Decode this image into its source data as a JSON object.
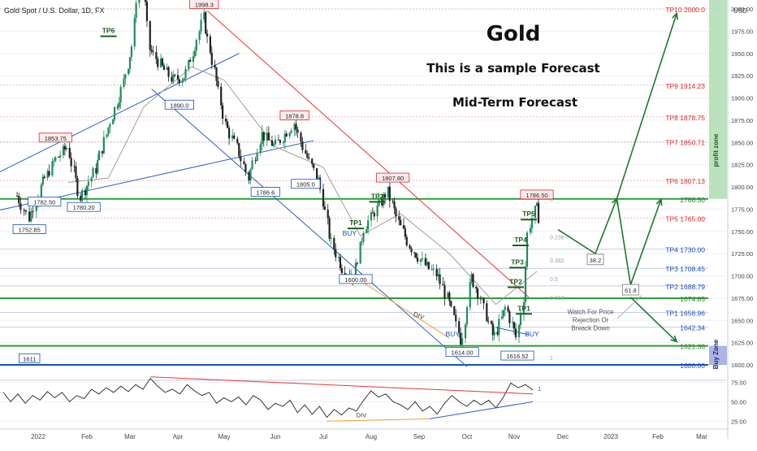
{
  "header": {
    "symbol_title": "Gold Spot / U.S. Dollar, 1D, FX",
    "currency": "USD"
  },
  "headline": {
    "title": "Gold",
    "subtitle": "This is a sample Forecast",
    "subtitle2": "Mid-Term Forecast"
  },
  "labels": {
    "profit_zone": "profit zone",
    "buy_zone": "Buy Zone",
    "watch_note": [
      "Watch For Price",
      "Rejection Or",
      "Breack Down"
    ],
    "div": "DIV"
  },
  "chart_data": [
    {
      "type": "line",
      "title": "Gold Spot / U.S. Dollar, 1D, FX",
      "y_axis": {
        "unit": "USD",
        "ticks": [
          1600,
          1625,
          1650,
          1675,
          1700,
          1725,
          1750,
          1775,
          1800,
          1825,
          1850,
          1875,
          1900,
          1925,
          1950,
          1975,
          2000
        ],
        "ylim": [
          1594,
          2012
        ]
      },
      "x_axis": {
        "ticks": [
          "2022",
          "Feb",
          "Mar",
          "Apr",
          "May",
          "Jun",
          "Jul",
          "Aug",
          "Sep",
          "Oct",
          "Nov",
          "Dec",
          "2023",
          "Feb",
          "Mar"
        ]
      },
      "price_path": [
        [
          "2021-12-20",
          1790
        ],
        [
          "2021-12-27",
          1765
        ],
        [
          "2022-01-03",
          1800
        ],
        [
          "2022-01-12",
          1830
        ],
        [
          "2022-01-20",
          1845
        ],
        [
          "2022-01-28",
          1788
        ],
        [
          "2022-02-07",
          1820
        ],
        [
          "2022-02-15",
          1865
        ],
        [
          "2022-02-24",
          1910
        ],
        [
          "2022-03-03",
          1960
        ],
        [
          "2022-03-08",
          2060
        ],
        [
          "2022-03-14",
          1955
        ],
        [
          "2022-03-22",
          1935
        ],
        [
          "2022-03-29",
          1920
        ],
        [
          "2022-04-06",
          1925
        ],
        [
          "2022-04-18",
          1990
        ],
        [
          "2022-04-25",
          1930
        ],
        [
          "2022-05-02",
          1870
        ],
        [
          "2022-05-10",
          1840
        ],
        [
          "2022-05-16",
          1810
        ],
        [
          "2022-05-24",
          1860
        ],
        [
          "2022-06-01",
          1845
        ],
        [
          "2022-06-13",
          1872
        ],
        [
          "2022-06-20",
          1838
        ],
        [
          "2022-06-29",
          1805
        ],
        [
          "2022-07-06",
          1740
        ],
        [
          "2022-07-14",
          1708
        ],
        [
          "2022-07-21",
          1700
        ],
        [
          "2022-07-28",
          1755
        ],
        [
          "2022-08-05",
          1775
        ],
        [
          "2022-08-12",
          1795
        ],
        [
          "2022-08-19",
          1760
        ],
        [
          "2022-08-26",
          1735
        ],
        [
          "2022-09-05",
          1712
        ],
        [
          "2022-09-13",
          1700
        ],
        [
          "2022-09-20",
          1670
        ],
        [
          "2022-09-28",
          1625
        ],
        [
          "2022-10-04",
          1700
        ],
        [
          "2022-10-11",
          1672
        ],
        [
          "2022-10-19",
          1630
        ],
        [
          "2022-10-27",
          1665
        ],
        [
          "2022-11-03",
          1630
        ],
        [
          "2022-11-07",
          1676
        ],
        [
          "2022-11-10",
          1752
        ],
        [
          "2022-11-15",
          1778
        ],
        [
          "2022-11-18",
          1758
        ]
      ],
      "sma_path": [
        [
          "2022-01-20",
          1805
        ],
        [
          "2022-02-15",
          1810
        ],
        [
          "2022-03-10",
          1890
        ],
        [
          "2022-04-10",
          1935
        ],
        [
          "2022-05-01",
          1920
        ],
        [
          "2022-06-01",
          1845
        ],
        [
          "2022-07-01",
          1822
        ],
        [
          "2022-07-25",
          1745
        ],
        [
          "2022-08-20",
          1770
        ],
        [
          "2022-09-20",
          1725
        ],
        [
          "2022-10-20",
          1668
        ],
        [
          "2022-11-15",
          1705
        ]
      ],
      "levels": [
        {
          "label": "TP10 2000.0",
          "value": 2000.0,
          "color": "#d32f2f"
        },
        {
          "label": "TP9 1914.23",
          "value": 1914.23,
          "color": "#d32f2f"
        },
        {
          "label": "TP8 1878.75",
          "value": 1878.75,
          "color": "#d32f2f"
        },
        {
          "label": "TP7 1850.71",
          "value": 1850.71,
          "color": "#d32f2f"
        },
        {
          "label": "TP6 1807.13",
          "value": 1807.13,
          "color": "#d32f2f"
        },
        {
          "label": "1786.50",
          "value": 1786.5,
          "color": "#2e7d32"
        },
        {
          "label": "TP5 1765.00",
          "value": 1765.0,
          "color": "#d32f2f"
        },
        {
          "label": "TP4 1730.00",
          "value": 1730.0,
          "color": "#1a4fbf"
        },
        {
          "label": "TP3 1708.45",
          "value": 1708.45,
          "color": "#1a4fbf"
        },
        {
          "label": "TP2 1688.79",
          "value": 1688.79,
          "color": "#1a4fbf"
        },
        {
          "label": "1674.85",
          "value": 1674.85,
          "color": "#2e7d32"
        },
        {
          "label": "TP1 1658.96",
          "value": 1658.96,
          "color": "#1a4fbf"
        },
        {
          "label": "1642.34",
          "value": 1642.34,
          "color": "#1a4fbf"
        },
        {
          "label": "1621.36",
          "value": 1621.36,
          "color": "#2e7d32"
        },
        {
          "label": "1600.00",
          "value": 1600.0,
          "color": "#1a4fbf"
        }
      ],
      "fib_labels": [
        {
          "label": "0",
          "value": 1786.5
        },
        {
          "label": "0.236",
          "value": 1744
        },
        {
          "label": "0.382",
          "value": 1718
        },
        {
          "label": "0.5",
          "value": 1697
        },
        {
          "label": "0.618",
          "value": 1676
        },
        {
          "label": "1",
          "value": 1608
        }
      ],
      "price_tags": [
        {
          "label": "1998.3",
          "date": "2022-04-18",
          "value": 2005,
          "color": "#d32f2f"
        },
        {
          "label": "1878.8",
          "date": "2022-06-13",
          "value": 1880,
          "color": "#d32f2f"
        },
        {
          "label": "1853.75",
          "date": "2022-01-12",
          "value": 1855,
          "color": "#d32f2f"
        },
        {
          "label": "1807.80",
          "date": "2022-08-15",
          "value": 1810,
          "color": "#d32f2f"
        },
        {
          "label": "1786.50",
          "date": "2022-11-15",
          "value": 1791,
          "color": "#d32f2f"
        },
        {
          "label": "1890.0",
          "date": "2022-04-02",
          "value": 1892,
          "color": "#1a4fbf"
        },
        {
          "label": "1805.0",
          "date": "2022-06-20",
          "value": 1803,
          "color": "#1a4fbf"
        },
        {
          "label": "1786.6",
          "date": "2022-05-26",
          "value": 1794,
          "color": "#1a4fbf"
        },
        {
          "label": "1782.50",
          "date": "2022-01-05",
          "value": 1783,
          "color": "#1a4fbf"
        },
        {
          "label": "1780.20",
          "date": "2022-01-30",
          "value": 1777,
          "color": "#1a4fbf"
        },
        {
          "label": "1752.85",
          "date": "2021-12-27",
          "value": 1752,
          "color": "#1a4fbf"
        },
        {
          "label": "1600.00",
          "date": "2022-07-22",
          "value": 1696,
          "color": "#1a4fbf"
        },
        {
          "label": "1614.00",
          "date": "2022-09-28",
          "value": 1614,
          "color": "#1a4fbf"
        },
        {
          "label": "1616.52",
          "date": "2022-11-03",
          "value": 1610,
          "color": "#1a4fbf"
        },
        {
          "label": "1611",
          "date": "2021-12-27",
          "value": 1607,
          "color": "#1a4fbf"
        }
      ],
      "tp_marks": [
        {
          "label": "TP6",
          "date": "2022-02-15",
          "value": 1972
        },
        {
          "label": "TP2",
          "date": "2022-08-05",
          "value": 1786
        },
        {
          "label": "TP1",
          "date": "2022-07-22",
          "value": 1756
        },
        {
          "label": "TP5",
          "date": "2022-11-10",
          "value": 1766
        },
        {
          "label": "TP4",
          "date": "2022-11-05",
          "value": 1737
        },
        {
          "label": "TP3",
          "date": "2022-11-03",
          "value": 1712
        },
        {
          "label": "TP2",
          "date": "2022-11-02",
          "value": 1690
        },
        {
          "label": "TP1",
          "date": "2022-11-07",
          "value": 1660
        }
      ],
      "buy_marks": [
        {
          "label": "BUY",
          "date": "2022-07-18",
          "value": 1745
        },
        {
          "label": "BUY",
          "date": "2022-09-22",
          "value": 1632
        },
        {
          "label": "BUY",
          "date": "2022-11-12",
          "value": 1632
        }
      ],
      "forecast_boxes": [
        {
          "label": "38.2",
          "date": "2022-12-22",
          "value": 1718
        },
        {
          "label": "61.8",
          "date": "2023-01-14",
          "value": 1684
        }
      ]
    },
    {
      "type": "line",
      "title": "",
      "y_axis": {
        "ticks": [
          25,
          50,
          75
        ]
      },
      "ylim": [
        18,
        88
      ],
      "rsi_points": [
        [
          0,
          62
        ],
        [
          1,
          50
        ],
        [
          2,
          60
        ],
        [
          3,
          48
        ],
        [
          4,
          58
        ],
        [
          5,
          52
        ],
        [
          6,
          63
        ],
        [
          7,
          55
        ],
        [
          8,
          62
        ],
        [
          9,
          50
        ],
        [
          10,
          58
        ],
        [
          11,
          54
        ],
        [
          12,
          66
        ],
        [
          13,
          60
        ],
        [
          14,
          68
        ],
        [
          15,
          62
        ],
        [
          16,
          70
        ],
        [
          17,
          63
        ],
        [
          18,
          72
        ],
        [
          19,
          66
        ],
        [
          20,
          80
        ],
        [
          21,
          70
        ],
        [
          22,
          62
        ],
        [
          23,
          66
        ],
        [
          24,
          60
        ],
        [
          25,
          72
        ],
        [
          26,
          64
        ],
        [
          27,
          58
        ],
        [
          28,
          62
        ],
        [
          29,
          48
        ],
        [
          30,
          55
        ],
        [
          31,
          50
        ],
        [
          32,
          56
        ],
        [
          33,
          46
        ],
        [
          34,
          58
        ],
        [
          35,
          52
        ],
        [
          36,
          40
        ],
        [
          37,
          48
        ],
        [
          38,
          44
        ],
        [
          39,
          52
        ],
        [
          40,
          36
        ],
        [
          41,
          46
        ],
        [
          42,
          34
        ],
        [
          43,
          44
        ],
        [
          44,
          30
        ],
        [
          45,
          40
        ],
        [
          46,
          33
        ],
        [
          47,
          42
        ],
        [
          48,
          38
        ],
        [
          49,
          52
        ],
        [
          50,
          64
        ],
        [
          51,
          56
        ],
        [
          52,
          60
        ],
        [
          53,
          50
        ],
        [
          54,
          46
        ],
        [
          55,
          40
        ],
        [
          56,
          50
        ],
        [
          57,
          38
        ],
        [
          58,
          44
        ],
        [
          59,
          34
        ],
        [
          60,
          48
        ],
        [
          61,
          58
        ],
        [
          62,
          50
        ],
        [
          63,
          44
        ],
        [
          64,
          52
        ],
        [
          65,
          46
        ],
        [
          66,
          52
        ],
        [
          67,
          42
        ],
        [
          68,
          56
        ],
        [
          69,
          74
        ],
        [
          70,
          68
        ],
        [
          71,
          72
        ],
        [
          72,
          65
        ]
      ],
      "rsi_label": "1"
    }
  ]
}
